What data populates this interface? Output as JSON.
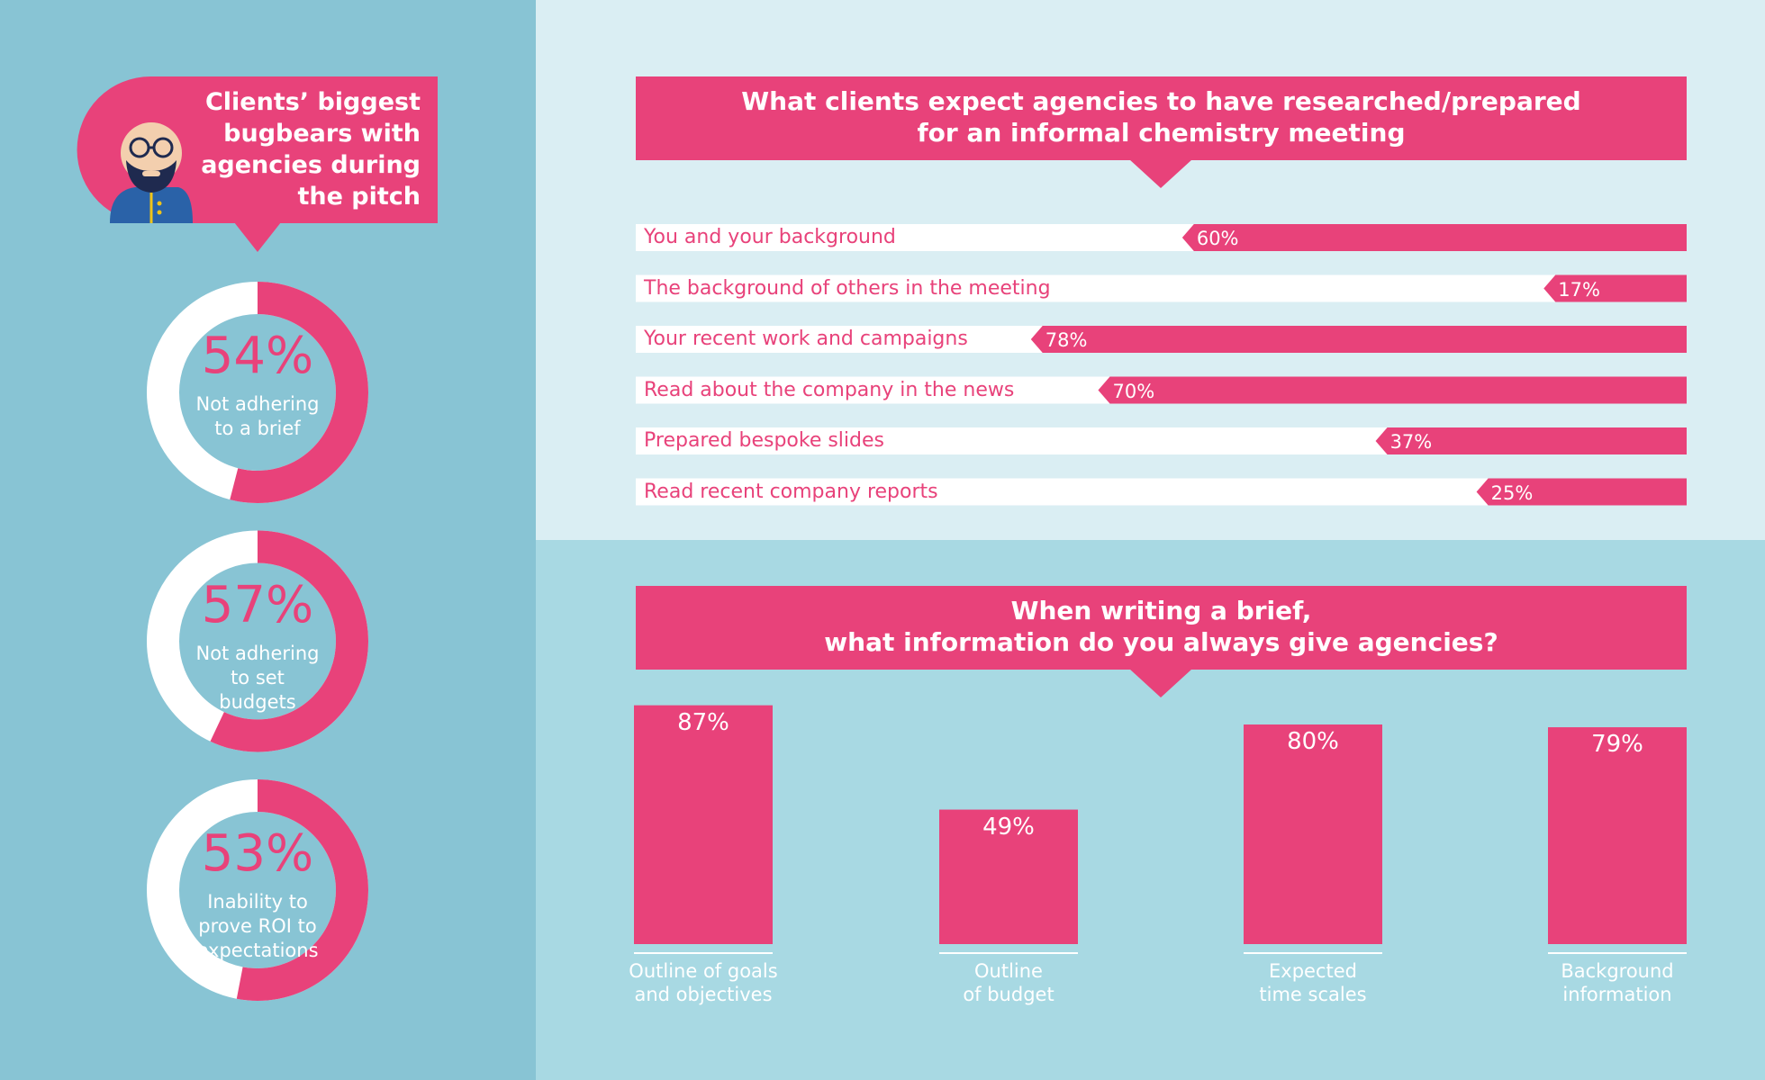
{
  "chart_data": [
    {
      "type": "donut",
      "title": "Clients’ biggest\nbugbears with\nagencies during\nthe pitch",
      "categories": [
        "Not adhering\nto a brief",
        "Not adhering\nto set\nbudgets",
        "Inability to\nprove ROI to\nexpectations"
      ],
      "values": [
        54,
        57,
        53
      ],
      "value_labels": [
        "54%",
        "57%",
        "53%"
      ],
      "color": "#e8427a"
    },
    {
      "type": "bar",
      "orientation": "horizontal",
      "title": "What clients expect agencies to have researched/prepared\nfor an informal chemistry meeting",
      "categories": [
        "You and your background",
        "The background of others in the meeting",
        "Your recent work and campaigns",
        "Read about the company in the news",
        "Prepared bespoke slides",
        "Read recent company reports"
      ],
      "values": [
        60,
        17,
        78,
        70,
        37,
        25
      ],
      "value_labels": [
        "60%",
        "17%",
        "78%",
        "70%",
        "37%",
        "25%"
      ],
      "xlim": [
        0,
        125
      ],
      "color": "#e8427a"
    },
    {
      "type": "bar",
      "orientation": "vertical",
      "title": "When writing a brief,\nwhat information do you always give agencies?",
      "categories": [
        "Outline of goals\nand objectives",
        "Outline\nof budget",
        "Expected\ntime scales",
        "Background\ninformation"
      ],
      "values": [
        87,
        49,
        80,
        79
      ],
      "value_labels": [
        "87%",
        "49%",
        "80%",
        "79%"
      ],
      "ylim": [
        0,
        100
      ],
      "color": "#e8427a"
    }
  ]
}
